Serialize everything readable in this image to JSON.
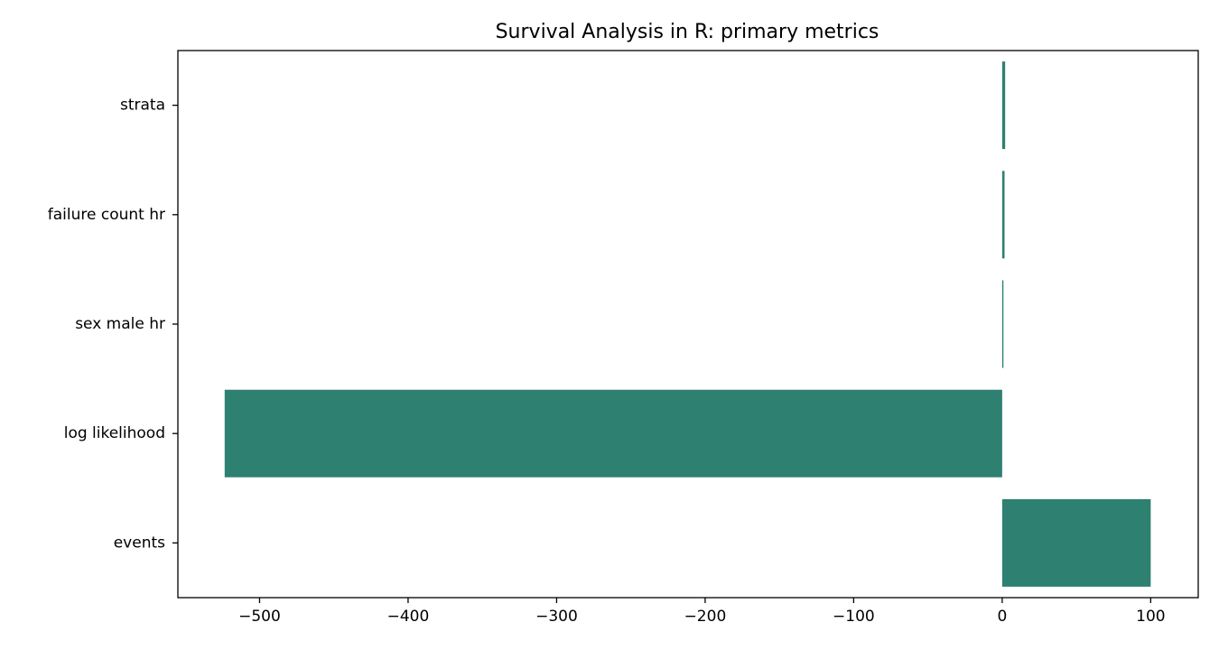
{
  "chart_data": {
    "type": "bar",
    "orientation": "horizontal",
    "title": "Survival Analysis in R: primary metrics",
    "xlabel": "",
    "ylabel": "",
    "categories": [
      "events",
      "log likelihood",
      "sex male hr",
      "failure count hr",
      "strata"
    ],
    "values": [
      100,
      -523.5,
      0.85,
      1.6,
      2
    ],
    "xlim": [
      -555,
      132
    ],
    "xticks": [
      -500,
      -400,
      -300,
      -200,
      -100,
      0,
      100
    ],
    "xtick_labels": [
      "−500",
      "−400",
      "−300",
      "−200",
      "−100",
      "0",
      "100"
    ],
    "grid": false,
    "legend": "none",
    "bar_color": "#2e8070"
  }
}
